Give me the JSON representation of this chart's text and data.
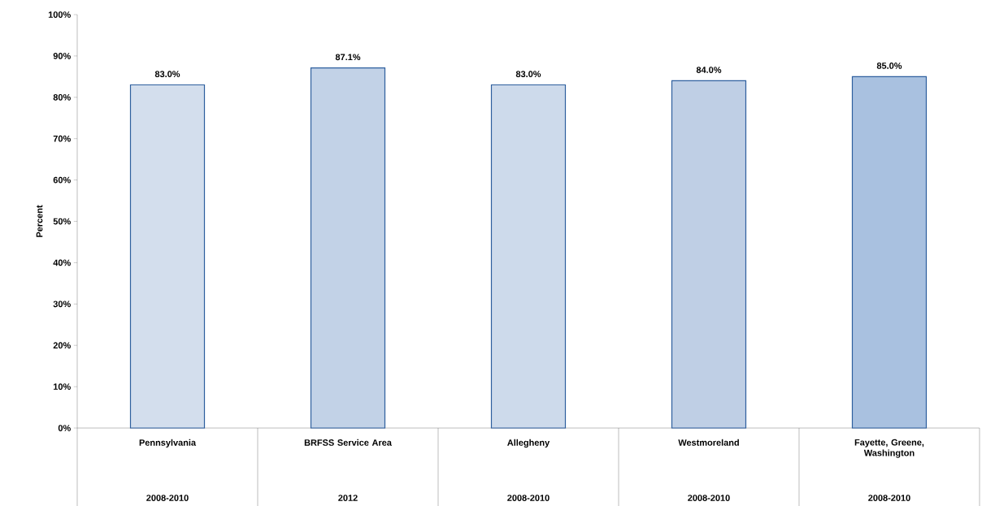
{
  "chart_data": {
    "type": "bar",
    "ylabel": "Percent",
    "categories": [
      "Pennsylvania",
      "BRFSS Service Area",
      "Allegheny",
      "Westmoreland",
      "Fayette, Greene, Washington"
    ],
    "values": [
      83.0,
      87.1,
      83.0,
      84.0,
      85.0
    ],
    "value_labels": [
      "83.0%",
      "87.1%",
      "83.0%",
      "84.0%",
      "85.0%"
    ],
    "colors": [
      "#d3deed",
      "#c2d2e7",
      "#cddaeb",
      "#bfcfe5",
      "#a9c1e0"
    ],
    "annotations": [
      "2008-2010",
      "2012",
      "2008-2010",
      "2008-2010",
      "2008-2010"
    ],
    "ylim": [
      0,
      100
    ],
    "yticks": [
      {
        "value": 0,
        "label": "0%"
      },
      {
        "value": 10,
        "label": "10%"
      },
      {
        "value": 20,
        "label": "20%"
      },
      {
        "value": 30,
        "label": "30%"
      },
      {
        "value": 40,
        "label": "40%"
      },
      {
        "value": 50,
        "label": "50%"
      },
      {
        "value": 60,
        "label": "60%"
      },
      {
        "value": 70,
        "label": "70%"
      },
      {
        "value": 80,
        "label": "80%"
      },
      {
        "value": 90,
        "label": "90%"
      },
      {
        "value": 100,
        "label": "100%"
      }
    ],
    "grid": false
  }
}
